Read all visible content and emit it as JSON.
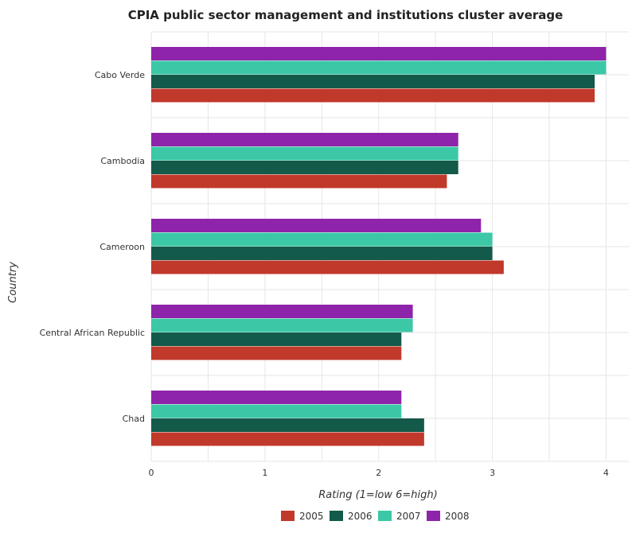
{
  "chart_data": {
    "type": "bar",
    "orientation": "horizontal",
    "title": "CPIA public sector management and institutions cluster average",
    "xlabel": "Rating (1=low 6=high)",
    "ylabel": "Country",
    "xlim": [
      0,
      4.2
    ],
    "xticks": [
      0,
      1,
      2,
      3,
      4
    ],
    "grid": true,
    "legend_position": "bottom",
    "categories": [
      "Cabo Verde",
      "Cambodia",
      "Cameroon",
      "Central African Republic",
      "Chad"
    ],
    "series": [
      {
        "name": "2005",
        "color": "#c0392b",
        "values": [
          3.9,
          2.6,
          3.1,
          2.2,
          2.4
        ]
      },
      {
        "name": "2006",
        "color": "#145a4a",
        "values": [
          3.9,
          2.7,
          3.0,
          2.2,
          2.4
        ]
      },
      {
        "name": "2007",
        "color": "#3cc8a6",
        "values": [
          4.0,
          2.7,
          3.0,
          2.3,
          2.2
        ]
      },
      {
        "name": "2008",
        "color": "#8e24aa",
        "values": [
          4.0,
          2.7,
          2.9,
          2.3,
          2.2
        ]
      }
    ]
  }
}
